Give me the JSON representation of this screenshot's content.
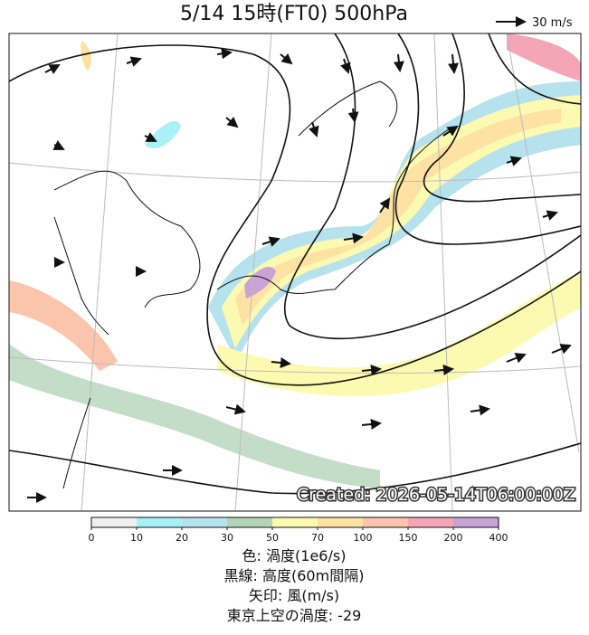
{
  "title": "5/14  15時(FT0)    500hPa",
  "ref_arrow": {
    "label": "30 m/s"
  },
  "created": "Created: 2026-05-14T06:00:00Z",
  "colorbar": {
    "ticks": [
      0,
      10,
      20,
      30,
      50,
      70,
      100,
      150,
      200,
      400
    ],
    "colors": [
      "#f0f0f0",
      "#a9f0f8",
      "#b6e2ee",
      "#b4d4b8",
      "#fcfab0",
      "#fde2a4",
      "#fbc4ac",
      "#f4a6b6",
      "#c9a2d6"
    ]
  },
  "notes": [
    "色: 渦度(1e6/s)",
    "黒線: 高度(60m間隔)",
    "矢印: 風(m/s)",
    "東京上空の渦度: -29"
  ]
}
